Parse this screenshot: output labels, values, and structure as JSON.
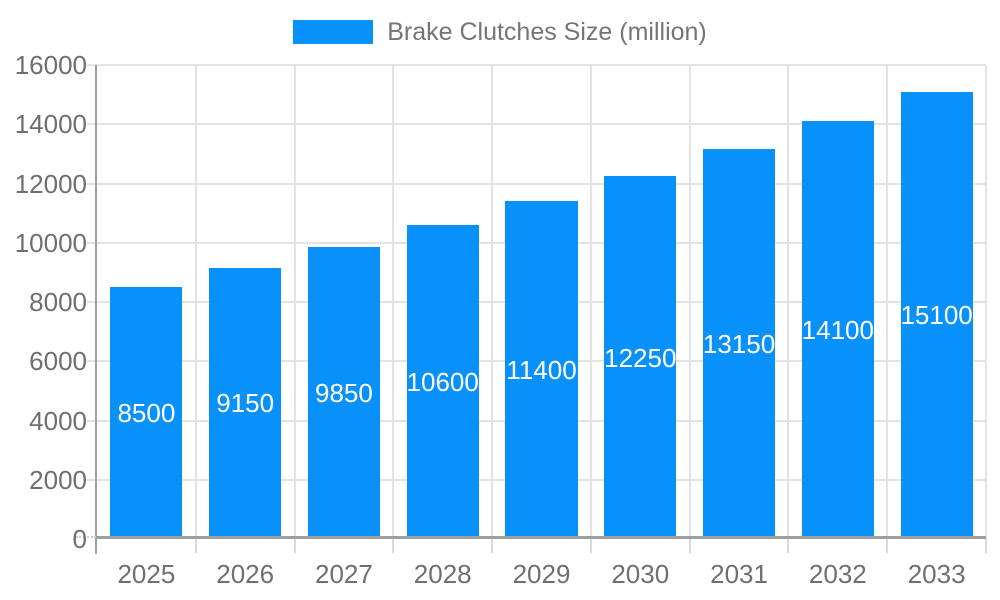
{
  "colors": {
    "bar": "#0991fb",
    "grid": "#e3e3e3",
    "axis": "#9e9e9e",
    "tick": "#d9d9d9",
    "axis_text": "#6f6f6f",
    "legend_text": "#757575",
    "bar_label_text": "#ffffff",
    "background": "#ffffff"
  },
  "legend": {
    "label": "Brake Clutches Size (million)",
    "position": "top-center",
    "swatch_color": "#0991fb"
  },
  "chart_data": {
    "type": "bar",
    "title": "Brake Clutches Size (million)",
    "categories": [
      "2025",
      "2026",
      "2027",
      "2028",
      "2029",
      "2030",
      "2031",
      "2032",
      "2033"
    ],
    "series": [
      {
        "name": "Brake Clutches Size (million)",
        "values": [
          8500,
          9150,
          9850,
          10600,
          11400,
          12250,
          13150,
          14100,
          15100
        ]
      }
    ],
    "data_labels": [
      "8500",
      "9150",
      "9850",
      "10600",
      "11400",
      "12250",
      "13150",
      "14100",
      "15100"
    ],
    "xlabel": "",
    "ylabel": "",
    "ylim": [
      0,
      16000
    ],
    "yticks": [
      0,
      2000,
      4000,
      6000,
      8000,
      10000,
      12000,
      14000,
      16000
    ],
    "grid": "both",
    "legend_position": "top"
  }
}
